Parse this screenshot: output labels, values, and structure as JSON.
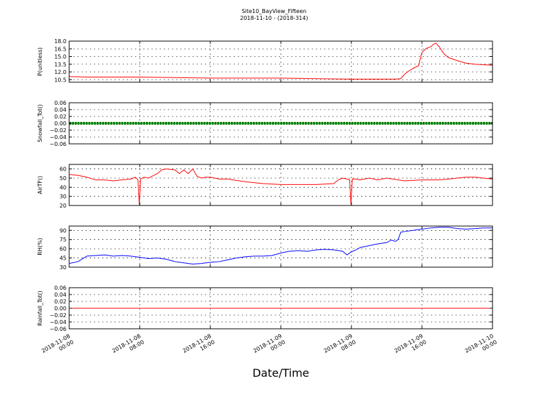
{
  "figure": {
    "title_line1": "Site10_BayView_Fifteen",
    "title_line2": "2018-11-10 - (2018-314)",
    "xlabel": "Date/Time"
  },
  "chart_data": [
    {
      "type": "line",
      "ylabel": "P(unitless)",
      "color": "#ff0000",
      "ylim": [
        10,
        18
      ],
      "yticks": [
        10.5,
        12.0,
        13.5,
        15.0,
        16.5,
        18.0
      ],
      "yticklabels": [
        "10.5",
        "12.0",
        "13.5",
        "15.0",
        "16.5",
        "18.0"
      ],
      "x_hours": [
        0,
        2,
        4,
        6,
        8,
        12,
        16,
        20,
        24,
        28,
        32,
        34,
        36,
        37,
        37.6,
        38,
        38.6,
        39,
        39.6,
        40,
        40.5,
        41,
        41.3,
        41.6,
        42,
        42.5,
        43,
        44,
        45,
        46,
        47,
        48
      ],
      "y": [
        11.1,
        11.0,
        11.0,
        11.0,
        11.0,
        10.9,
        10.8,
        10.8,
        10.8,
        10.7,
        10.6,
        10.6,
        10.6,
        10.6,
        10.7,
        11.5,
        12.3,
        12.7,
        13.2,
        15.8,
        16.6,
        16.9,
        17.4,
        17.6,
        16.8,
        15.5,
        14.8,
        14.2,
        13.7,
        13.5,
        13.4,
        13.3
      ],
      "grid": true
    },
    {
      "type": "line",
      "ylabel": "Snowfall_Tot()",
      "color": "#008000",
      "ylim": [
        -0.06,
        0.06
      ],
      "yticks": [
        -0.06,
        -0.04,
        -0.02,
        0.0,
        0.02,
        0.04,
        0.06
      ],
      "yticklabels": [
        "−0.06",
        "−0.04",
        "−0.02",
        "0.00",
        "0.02",
        "0.04",
        "0.06"
      ],
      "x_hours": [
        0,
        48
      ],
      "y": [
        0,
        0
      ],
      "dotted_markers": true,
      "grid": true
    },
    {
      "type": "line",
      "ylabel": "AirTF()",
      "color": "#ff0000",
      "ylim": [
        20,
        65
      ],
      "yticks": [
        20,
        30,
        40,
        50,
        60
      ],
      "yticklabels": [
        "20",
        "30",
        "40",
        "50",
        "60"
      ],
      "x_hours": [
        0,
        1,
        2,
        3,
        4,
        5,
        6,
        7,
        7.5,
        7.8,
        7.95,
        8.1,
        8.5,
        9,
        10,
        10.5,
        11,
        12,
        12.5,
        13,
        13.5,
        14,
        14.5,
        15,
        15.5,
        16,
        17,
        18,
        20,
        22,
        24,
        26,
        28,
        30,
        30.5,
        31,
        31.5,
        31.8,
        31.95,
        32.1,
        32.5,
        33,
        34,
        35,
        36,
        38,
        40,
        42,
        44,
        45,
        46,
        47,
        48
      ],
      "y": [
        54,
        53,
        51,
        48,
        48,
        47,
        48,
        49,
        51,
        48,
        21,
        49,
        51,
        50,
        55,
        59,
        60,
        59,
        55,
        59,
        55,
        60,
        52,
        50,
        51,
        51,
        49,
        49,
        46,
        44,
        43,
        43,
        43,
        44,
        48,
        50,
        49,
        48,
        21,
        49,
        49,
        48,
        50,
        48,
        50,
        47,
        48,
        48,
        50,
        51,
        51,
        50,
        49
      ],
      "grid": true
    },
    {
      "type": "line",
      "ylabel": "RH(%)",
      "color": "#0000ff",
      "ylim": [
        30,
        97
      ],
      "yticks": [
        30,
        45,
        60,
        75,
        90
      ],
      "yticklabels": [
        "30",
        "45",
        "60",
        "75",
        "90"
      ],
      "x_hours": [
        0,
        1,
        2,
        3,
        4,
        5,
        6,
        7,
        8,
        9,
        10,
        11,
        12,
        13,
        14,
        15,
        16,
        17,
        18,
        19,
        20,
        21,
        22,
        23,
        24,
        25,
        26,
        27,
        28,
        29,
        30,
        31,
        31.5,
        32,
        32.5,
        33,
        34,
        35,
        36,
        36.5,
        37,
        37.3,
        37.6,
        38,
        39,
        40,
        41,
        42,
        43,
        44,
        45,
        46,
        47,
        48
      ],
      "y": [
        36,
        39,
        48,
        49,
        50,
        48,
        49,
        48,
        46,
        44,
        45,
        43,
        39,
        37,
        35,
        36,
        38,
        39,
        42,
        45,
        47,
        48,
        48,
        49,
        53,
        56,
        57,
        56,
        58,
        59,
        58,
        56,
        50,
        55,
        58,
        62,
        65,
        68,
        70,
        74,
        72,
        75,
        87,
        88,
        90,
        92,
        94,
        95,
        95,
        93,
        92,
        93,
        94,
        94
      ],
      "grid": true
    },
    {
      "type": "line",
      "ylabel": "Rainfall_Tot()",
      "color": "#ff0000",
      "ylim": [
        -0.06,
        0.06
      ],
      "yticks": [
        -0.06,
        -0.04,
        -0.02,
        0.0,
        0.02,
        0.04,
        0.06
      ],
      "yticklabels": [
        "−0.06",
        "−0.04",
        "−0.02",
        "0.00",
        "0.02",
        "0.04",
        "0.06"
      ],
      "x_hours": [
        0,
        48
      ],
      "y": [
        0,
        0
      ],
      "grid": true
    }
  ],
  "xaxis": {
    "range_hours": [
      0,
      48
    ],
    "ticks_hours": [
      0,
      8,
      16,
      24,
      32,
      40,
      48
    ],
    "ticklabels": [
      [
        "2018-11-08",
        "00:00"
      ],
      [
        "2018-11-08",
        "08:00"
      ],
      [
        "2018-11-08",
        "16:00"
      ],
      [
        "2018-11-09",
        "00:00"
      ],
      [
        "2018-11-09",
        "08:00"
      ],
      [
        "2018-11-09",
        "16:00"
      ],
      [
        "2018-11-10",
        "00:00"
      ]
    ]
  }
}
